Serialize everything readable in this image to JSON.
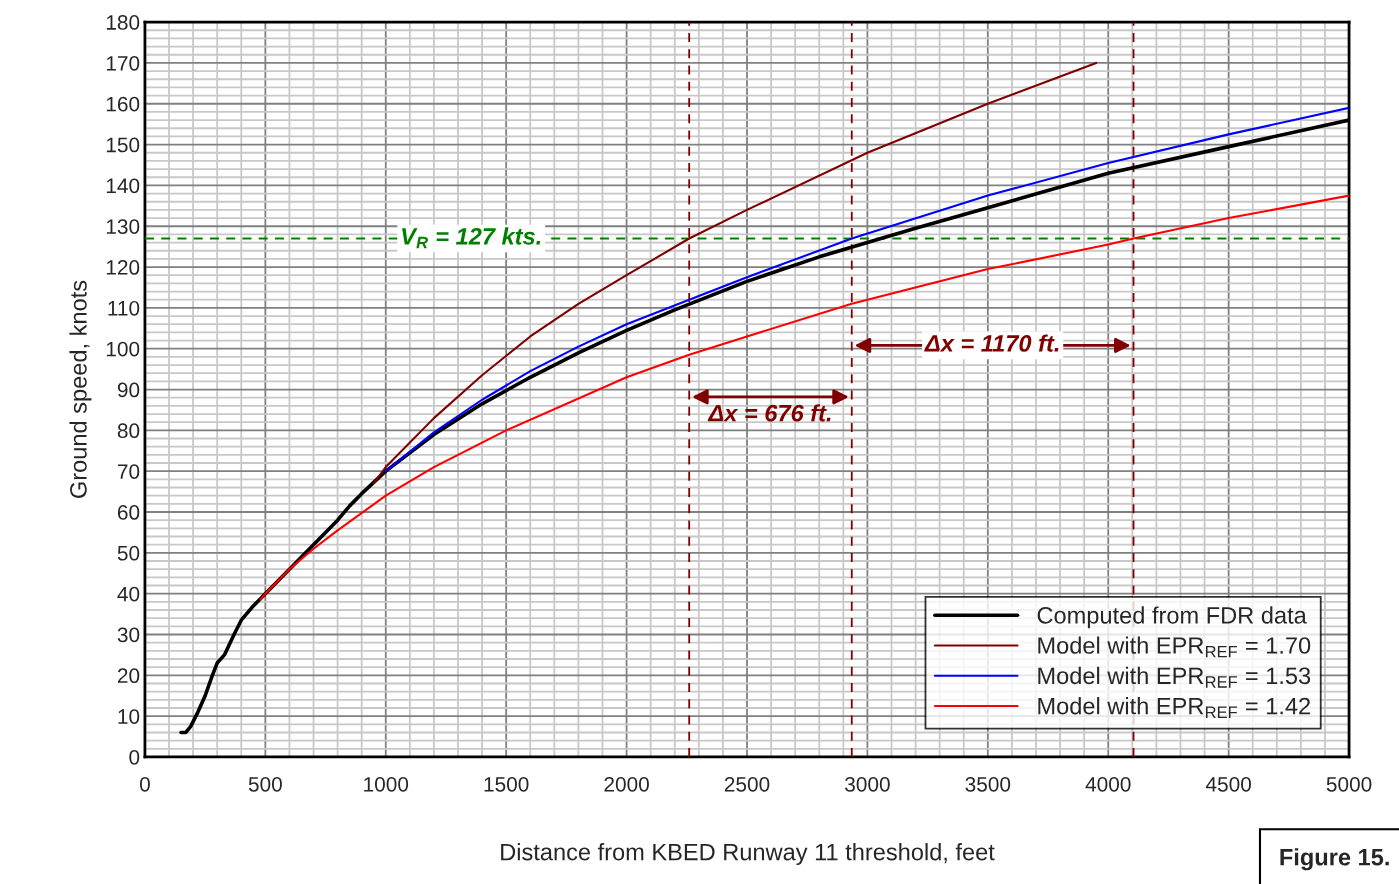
{
  "chart_data": {
    "type": "line",
    "xlabel": "Distance from KBED Runway 11 threshold, feet",
    "ylabel": "Ground speed, knots",
    "xlim": [
      0,
      5000
    ],
    "xticks": [
      0,
      500,
      1000,
      1500,
      2000,
      2500,
      3000,
      3500,
      4000,
      4500,
      5000
    ],
    "ylim": [
      0,
      180
    ],
    "yticks": [
      0,
      10,
      20,
      30,
      40,
      50,
      60,
      70,
      80,
      90,
      100,
      110,
      120,
      130,
      140,
      150,
      160,
      170,
      180
    ],
    "grid": true,
    "legend": "bottom right",
    "marker": "none",
    "line_style": "solid",
    "series": [
      {
        "name": "Computed from FDR data",
        "color": "#000000",
        "x": [
          150,
          170,
          190,
          220,
          250,
          280,
          300,
          330,
          370,
          400,
          450,
          500,
          600,
          700,
          800,
          850,
          900,
          1000,
          1200,
          1400,
          1600,
          1800,
          2000,
          2200,
          2500,
          2800,
          3000,
          3200,
          3500,
          4000,
          4500,
          5000
        ],
        "values": [
          6,
          6,
          7.5,
          11,
          15,
          20,
          23,
          25,
          30,
          33.5,
          37,
          40,
          46,
          52,
          58,
          61.5,
          64.5,
          70,
          79,
          86.5,
          93,
          99,
          104.5,
          109.5,
          116.5,
          122.5,
          126,
          129.5,
          134.5,
          143,
          149.5,
          156
        ]
      },
      {
        "name": "Model with EPR$_{REF}$ = 1.70",
        "color": "#800000",
        "x": [
          950,
          1000,
          1200,
          1400,
          1600,
          1800,
          2000,
          2260,
          2500,
          3000,
          3500,
          3950
        ],
        "values": [
          67,
          71,
          83,
          93.5,
          103,
          111,
          118,
          127,
          134,
          148,
          160,
          170
        ]
      },
      {
        "name": "Model with EPR$_{REF}$ = 1.53",
        "color": "#0000ff",
        "x": [
          1000,
          1200,
          1400,
          1600,
          1800,
          2000,
          2260,
          2500,
          2935,
          3500,
          4000,
          4500,
          5000
        ],
        "values": [
          70,
          79.5,
          87.5,
          94.5,
          100.5,
          106,
          112,
          117.5,
          127,
          137.5,
          145.5,
          152.5,
          159
        ]
      },
      {
        "name": "Model with EPR$_{REF}$ = 1.42",
        "color": "#ff0000",
        "x": [
          480,
          500,
          600,
          700,
          800,
          1000,
          1200,
          1500,
          2000,
          2260,
          2500,
          2935,
          3000,
          3500,
          4000,
          4105,
          4500,
          5000
        ],
        "values": [
          38.5,
          40,
          46,
          51,
          55.5,
          64,
          71,
          80,
          93,
          98.5,
          103,
          111,
          112,
          119.5,
          125.5,
          127,
          132,
          137.5
        ]
      }
    ],
    "ref_lines": [
      {
        "axis": "y",
        "value": 127,
        "label": "V$_{R}$ = 127 kts.",
        "color": "#008000",
        "line_style": "dashed"
      },
      {
        "axis": "x",
        "value": 2260,
        "color": "#800000",
        "line_style": "dashed"
      },
      {
        "axis": "x",
        "value": 2935,
        "color": "#800000",
        "line_style": "dashed"
      },
      {
        "axis": "x",
        "value": 4105,
        "color": "#800000",
        "line_style": "dashed"
      }
    ],
    "annotations": [
      "Δx = 676 ft.",
      "Δx = 1170 ft.",
      "Figure 15."
    ]
  }
}
